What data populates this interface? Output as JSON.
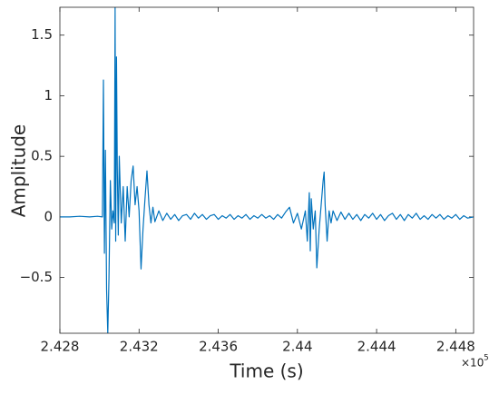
{
  "chart_data": {
    "type": "line",
    "x_label": "Time (s)",
    "y_label": "Amplitude",
    "x_exponent_base": "×10",
    "x_exponent": "5",
    "xlim": [
      2.428,
      2.4489
    ],
    "ylim": [
      -0.96,
      1.73
    ],
    "xticks": [
      2.428,
      2.432,
      2.436,
      2.44,
      2.444,
      2.448
    ],
    "yticks": [
      {
        "value": -0.5,
        "label": "−0.5"
      },
      0,
      0.5,
      1,
      1.5
    ],
    "grid": false,
    "box": true,
    "x": [
      2.428,
      2.4285,
      2.429,
      2.4295,
      2.4299,
      2.43015,
      2.4302,
      2.43025,
      2.4303,
      2.43036,
      2.43042,
      2.43048,
      2.43055,
      2.43062,
      2.43068,
      2.43075,
      2.43079,
      2.43082,
      2.43086,
      2.4309,
      2.43095,
      2.431,
      2.4311,
      2.4312,
      2.4313,
      2.4314,
      2.4315,
      2.4316,
      2.4317,
      2.4318,
      2.4319,
      2.432,
      2.4321,
      2.4322,
      2.4323,
      2.4324,
      2.4325,
      2.4326,
      2.4327,
      2.4328,
      2.433,
      2.4332,
      2.4334,
      2.4336,
      2.4338,
      2.434,
      2.4342,
      2.4344,
      2.4346,
      2.4348,
      2.435,
      2.4352,
      2.4354,
      2.4356,
      2.4358,
      2.436,
      2.4362,
      2.4364,
      2.4366,
      2.4368,
      2.437,
      2.4372,
      2.4374,
      2.4376,
      2.4378,
      2.438,
      2.4382,
      2.4384,
      2.4386,
      2.4388,
      2.439,
      2.4392,
      2.4394,
      2.4396,
      2.4398,
      2.44,
      2.4402,
      2.4404,
      2.4405,
      2.4406,
      2.44065,
      2.4407,
      2.4408,
      2.4409,
      2.44098,
      2.4411,
      2.4412,
      2.44125,
      2.4413,
      2.44135,
      2.4414,
      2.4415,
      2.4416,
      2.4417,
      2.4418,
      2.442,
      2.4422,
      2.4424,
      2.4426,
      2.4428,
      2.443,
      2.4432,
      2.4434,
      2.4436,
      2.4438,
      2.444,
      2.4442,
      2.4444,
      2.4446,
      2.4448,
      2.445,
      2.4452,
      2.4454,
      2.4456,
      2.4458,
      2.446,
      2.4462,
      2.4464,
      2.4466,
      2.4468,
      2.447,
      2.4472,
      2.4474,
      2.4476,
      2.4478,
      2.448,
      2.4482,
      2.4484,
      2.4486,
      2.4489
    ],
    "series": [
      {
        "color": "#0072bd",
        "values": [
          0,
          0,
          0.005,
          0,
          0.005,
          0,
          1.13,
          -0.3,
          0.55,
          -0.6,
          -0.96,
          -0.5,
          0.3,
          -0.1,
          0.05,
          -0.05,
          1.73,
          -0.2,
          1.32,
          0.4,
          -0.15,
          0.5,
          -0.05,
          0.25,
          -0.2,
          0.25,
          0,
          0.3,
          0.42,
          0.1,
          0.25,
          0.05,
          -0.43,
          -0.1,
          0.15,
          0.38,
          0.1,
          -0.05,
          0.08,
          -0.04,
          0.05,
          -0.03,
          0.03,
          -0.02,
          0.02,
          -0.03,
          0.01,
          0.02,
          -0.02,
          0.03,
          -0.01,
          0.02,
          -0.02,
          0.01,
          0.02,
          -0.02,
          0.01,
          -0.01,
          0.02,
          -0.02,
          0.01,
          -0.01,
          0.02,
          -0.02,
          0.01,
          -0.01,
          0.02,
          -0.01,
          0.01,
          -0.02,
          0.02,
          -0.01,
          0.04,
          0.08,
          -0.05,
          0.03,
          -0.1,
          0.05,
          -0.2,
          0.2,
          -0.28,
          0.15,
          -0.1,
          0.05,
          -0.42,
          -0.1,
          0.1,
          0.2,
          0.3,
          0.37,
          0.1,
          -0.2,
          0.05,
          -0.05,
          0.05,
          -0.03,
          0.04,
          -0.02,
          0.03,
          -0.02,
          0.02,
          -0.03,
          0.02,
          -0.01,
          0.03,
          -0.02,
          0.02,
          -0.03,
          0.01,
          0.03,
          -0.02,
          0.02,
          -0.03,
          0.02,
          -0.01,
          0.03,
          -0.02,
          0.01,
          -0.02,
          0.02,
          -0.01,
          0.02,
          -0.02,
          0.01,
          -0.01,
          0.02,
          -0.02,
          0.01,
          -0.01,
          0
        ]
      }
    ]
  }
}
